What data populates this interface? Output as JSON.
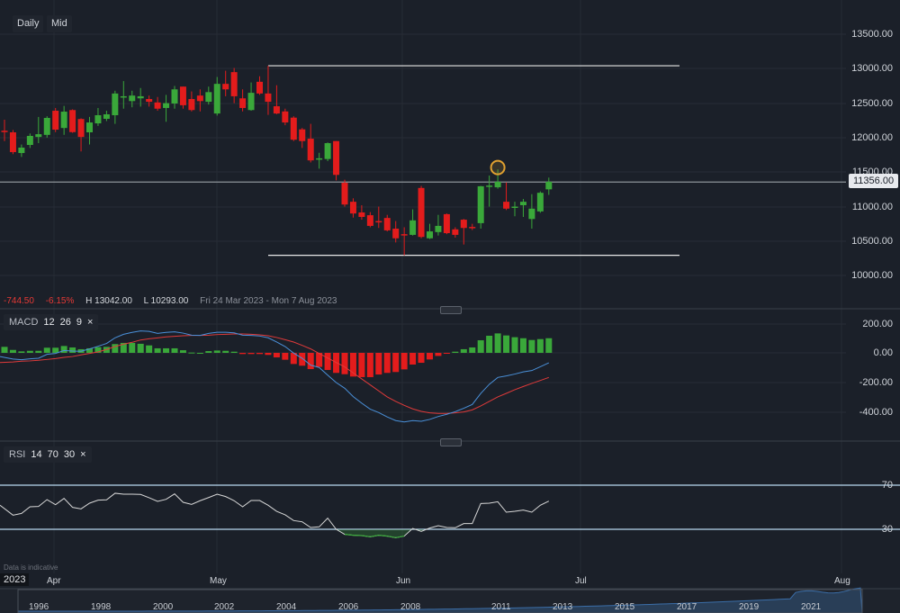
{
  "toolbar": {
    "daily_label": "Daily",
    "mid_label": "Mid"
  },
  "price_axis": {
    "labels": [
      "13500.00",
      "13000.00",
      "12500.00",
      "12000.00",
      "11500.00",
      "11000.00",
      "10500.00",
      "10000.00"
    ],
    "current_price": "11356.00"
  },
  "summary": {
    "change": "-744.50",
    "change_pct": "-6.15%",
    "high": "H 13042.00",
    "low": "L 10293.00",
    "range": "Fri 24 Mar 2023 - Mon 7 Aug 2023"
  },
  "macd": {
    "name": "MACD",
    "p1": "12",
    "p2": "26",
    "p3": "9",
    "close": "×",
    "axis": [
      "200.00",
      "0.00",
      "-200.00",
      "-400.00"
    ]
  },
  "rsi": {
    "name": "RSI",
    "p1": "14",
    "p2": "70",
    "p3": "30",
    "close": "×",
    "axis": [
      "70",
      "30"
    ]
  },
  "footer": {
    "note": "Data is indicative",
    "year": "2023",
    "months": [
      "Apr",
      "May",
      "Jun",
      "Jul",
      "Aug"
    ],
    "navigator_years": [
      "1996",
      "1998",
      "2000",
      "2002",
      "2004",
      "2006",
      "2008",
      "2011",
      "2013",
      "2015",
      "2017",
      "2019",
      "2021"
    ]
  },
  "colors": {
    "up": "#3aa83a",
    "down": "#e31c1c",
    "macd_line": "#4a90d9",
    "signal_line": "#e03a3a",
    "rsi_line": "#d8d8d8",
    "bands": "#b8d8f0",
    "highlight": "#e0a030"
  },
  "chart_data": [
    {
      "type": "candlestick",
      "ylim": [
        10000,
        13500
      ],
      "support": 10293,
      "resistance": 13042,
      "last": 11356,
      "ohlc": [
        [
          12100,
          12260,
          11950,
          12080
        ],
        [
          12077,
          12110,
          11760,
          11790
        ],
        [
          11777,
          11900,
          11720,
          11855
        ],
        [
          11894,
          12060,
          11850,
          12025
        ],
        [
          12010,
          12300,
          11920,
          12050
        ],
        [
          12040,
          12310,
          12000,
          12286
        ],
        [
          12390,
          12430,
          12080,
          12116
        ],
        [
          12140,
          12460,
          12040,
          12377
        ],
        [
          12400,
          12410,
          12070,
          12080
        ],
        [
          12270,
          12280,
          11800,
          12010
        ],
        [
          12077,
          12300,
          11900,
          12220
        ],
        [
          12207,
          12430,
          12170,
          12325
        ],
        [
          12273,
          12390,
          12240,
          12338
        ],
        [
          12325,
          12680,
          12200,
          12640
        ],
        [
          12590,
          12820,
          12420,
          12600
        ],
        [
          12530,
          12680,
          12440,
          12610
        ],
        [
          12570,
          12720,
          12450,
          12600
        ],
        [
          12560,
          12610,
          12450,
          12520
        ],
        [
          12510,
          12590,
          12390,
          12420
        ],
        [
          12430,
          12620,
          12230,
          12500
        ],
        [
          12495,
          12750,
          12420,
          12700
        ],
        [
          12740,
          12740,
          12420,
          12470
        ],
        [
          12560,
          12670,
          12380,
          12400
        ],
        [
          12610,
          12700,
          12380,
          12530
        ],
        [
          12520,
          12740,
          12480,
          12660
        ],
        [
          12350,
          12880,
          12320,
          12780
        ],
        [
          12780,
          12970,
          12600,
          12700
        ],
        [
          12950,
          13010,
          12500,
          12600
        ],
        [
          12570,
          12700,
          12380,
          12430
        ],
        [
          12400,
          12800,
          12390,
          12650
        ],
        [
          12810,
          12890,
          12620,
          12640
        ],
        [
          12640,
          13042,
          12330,
          12520
        ],
        [
          12455,
          12760,
          12340,
          12350
        ],
        [
          12380,
          12420,
          12180,
          12220
        ],
        [
          12290,
          12310,
          11950,
          11970
        ],
        [
          12120,
          12140,
          11850,
          11950
        ],
        [
          11985,
          12200,
          11640,
          11670
        ],
        [
          11690,
          11780,
          11550,
          11700
        ],
        [
          11690,
          11930,
          11660,
          11920
        ],
        [
          11950,
          11950,
          11380,
          11460
        ],
        [
          11345,
          11390,
          11000,
          11030
        ],
        [
          11070,
          11120,
          10840,
          10900
        ],
        [
          10915,
          11020,
          10810,
          10850
        ],
        [
          10875,
          10920,
          10700,
          10720
        ],
        [
          10790,
          11000,
          10690,
          10780
        ],
        [
          10835,
          10880,
          10640,
          10655
        ],
        [
          10680,
          10790,
          10480,
          10540
        ],
        [
          10600,
          10700,
          10293,
          10590
        ],
        [
          10590,
          10960,
          10580,
          10800
        ],
        [
          11270,
          11300,
          10540,
          10560
        ],
        [
          10540,
          10750,
          10530,
          10640
        ],
        [
          10630,
          10880,
          10580,
          10720
        ],
        [
          10890,
          10900,
          10600,
          10615
        ],
        [
          10670,
          10700,
          10550,
          10590
        ],
        [
          10810,
          10820,
          10450,
          10690
        ],
        [
          10705,
          10750,
          10660,
          10700
        ],
        [
          10760,
          11300,
          10680,
          11295
        ],
        [
          11300,
          11450,
          11000,
          11305
        ],
        [
          11280,
          11540,
          11260,
          11360
        ],
        [
          11070,
          11350,
          10950,
          10970
        ],
        [
          10990,
          11070,
          10860,
          11000
        ],
        [
          11020,
          11110,
          10850,
          11070
        ],
        [
          10820,
          11180,
          10680,
          10970
        ],
        [
          10930,
          11220,
          10910,
          11200
        ],
        [
          11250,
          11420,
          11170,
          11360
        ]
      ],
      "highlight_index": 58
    },
    {
      "type": "bar+line",
      "name": "MACD",
      "ylim": [
        -550,
        250
      ],
      "histogram": [
        41,
        20,
        10,
        14,
        14,
        35,
        35,
        47,
        37,
        25,
        31,
        39,
        41,
        60,
        68,
        68,
        62,
        51,
        31,
        31,
        31,
        18,
        2,
        0,
        12,
        16,
        14,
        8,
        -8,
        -8,
        -8,
        -14,
        -31,
        -47,
        -76,
        -88,
        -111,
        -96,
        -117,
        -137,
        -146,
        -162,
        -166,
        -166,
        -148,
        -137,
        -131,
        -113,
        -80,
        -68,
        -45,
        -21,
        -6,
        8,
        25,
        37,
        86,
        117,
        133,
        119,
        107,
        100,
        88,
        94,
        100
      ],
      "macd": [
        -25,
        -42,
        -47,
        -41,
        -37,
        -10,
        -4,
        16,
        12,
        11,
        27,
        45,
        64,
        103,
        127,
        140,
        150,
        147,
        133,
        140,
        144,
        135,
        121,
        119,
        133,
        141,
        141,
        137,
        121,
        119,
        115,
        103,
        74,
        43,
        -2,
        -37,
        -84,
        -100,
        -152,
        -203,
        -242,
        -299,
        -344,
        -385,
        -408,
        -438,
        -463,
        -472,
        -463,
        -468,
        -455,
        -435,
        -420,
        -402,
        -379,
        -353,
        -277,
        -215,
        -168,
        -158,
        -145,
        -130,
        -121,
        -95,
        -68
      ],
      "signal": [
        -66,
        -62,
        -57,
        -55,
        -51,
        -45,
        -39,
        -31,
        -25,
        -14,
        -4,
        6,
        23,
        43,
        59,
        72,
        88,
        96,
        102,
        109,
        113,
        117,
        119,
        119,
        121,
        125,
        127,
        129,
        129,
        127,
        123,
        117,
        105,
        90,
        74,
        51,
        27,
        -4,
        -35,
        -66,
        -96,
        -137,
        -178,
        -219,
        -260,
        -301,
        -332,
        -359,
        -383,
        -400,
        -410,
        -414,
        -414,
        -410,
        -404,
        -390,
        -363,
        -332,
        -301,
        -277,
        -252,
        -230,
        -209,
        -189,
        -168
      ]
    },
    {
      "type": "line",
      "name": "RSI",
      "ylim": [
        10,
        100
      ],
      "bands": [
        70,
        30
      ],
      "values": [
        51.8,
        42.8,
        44.4,
        50.4,
        50.7,
        56.9,
        52.3,
        58.0,
        49.9,
        48.5,
        53.7,
        56.4,
        56.7,
        62.7,
        61.8,
        61.8,
        61.6,
        58.6,
        55.3,
        57.2,
        62.1,
        54.5,
        52.6,
        55.9,
        58.8,
        61.8,
        59.7,
        55.9,
        50.4,
        56.1,
        56.1,
        51.8,
        46.3,
        43.1,
        37.9,
        36.8,
        31.6,
        32.2,
        40.1,
        30.0,
        25.4,
        24.6,
        24.3,
        23.2,
        24.6,
        23.8,
        22.4,
        23.8,
        30.8,
        28.1,
        31.1,
        33.3,
        31.6,
        31.4,
        35.2,
        35.2,
        53.4,
        53.7,
        55.0,
        45.5,
        46.3,
        47.4,
        45.5,
        51.8,
        55.6
      ]
    }
  ]
}
